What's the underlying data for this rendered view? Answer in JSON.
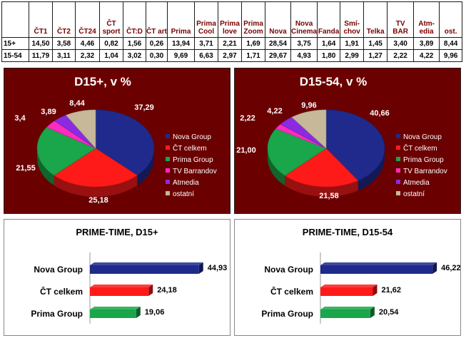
{
  "table": {
    "columns": [
      "ČT1",
      "ČT2",
      "ČT24",
      "ČT sport",
      "ČT:D",
      "ČT art",
      "Prima",
      "Prima Cool",
      "Prima love",
      "Prima Zoom",
      "Nova",
      "Nova Cinema",
      "Fanda",
      "Smí-chov",
      "Telka",
      "TV BAR",
      "Atm-edia",
      "ost."
    ],
    "rows": [
      {
        "label": "15+",
        "values": [
          "14,50",
          "3,58",
          "4,46",
          "0,82",
          "1,56",
          "0,26",
          "13,94",
          "3,71",
          "2,21",
          "1,69",
          "28,54",
          "3,75",
          "1,64",
          "1,91",
          "1,45",
          "3,40",
          "3,89",
          "8,44"
        ]
      },
      {
        "label": "15-54",
        "values": [
          "11,79",
          "3,11",
          "2,32",
          "1,04",
          "3,02",
          "0,30",
          "9,69",
          "6,63",
          "2,97",
          "1,71",
          "29,67",
          "4,93",
          "1,80",
          "2,99",
          "1,27",
          "2,22",
          "4,22",
          "9,96"
        ]
      }
    ]
  },
  "chart_data": [
    {
      "type": "pie",
      "title": "D15+, v %",
      "categories": [
        "Nova Group",
        "ČT celkem",
        "Prima Group",
        "TV Barrandov",
        "Atmedia",
        "ostatní"
      ],
      "values": [
        37.29,
        25.18,
        21.55,
        3.4,
        3.89,
        8.44
      ],
      "labels": [
        "37,29",
        "25,18",
        "21,55",
        "3,4",
        "3,89",
        "8,44"
      ],
      "colors": [
        "#1f2a8c",
        "#ff1a1a",
        "#1aa64a",
        "#ff2bbd",
        "#8a2be2",
        "#c8b89a"
      ],
      "legend": "right"
    },
    {
      "type": "pie",
      "title": "D15-54, v %",
      "categories": [
        "Nova Group",
        "ČT celkem",
        "Prima Group",
        "TV Barrandov",
        "Atmedia",
        "ostatní"
      ],
      "values": [
        40.66,
        21.58,
        21.0,
        2.22,
        4.22,
        9.96
      ],
      "labels": [
        "40,66",
        "21,58",
        "21,00",
        "2,22",
        "4,22",
        "9,96"
      ],
      "colors": [
        "#1f2a8c",
        "#ff1a1a",
        "#1aa64a",
        "#ff2bbd",
        "#8a2be2",
        "#c8b89a"
      ],
      "legend": "right"
    },
    {
      "type": "bar",
      "orientation": "horizontal",
      "title": "PRIME-TIME, D15+",
      "categories": [
        "Nova Group",
        "ČT celkem",
        "Prima Group"
      ],
      "values": [
        44.93,
        24.18,
        19.06
      ],
      "labels": [
        "44,93",
        "24,18",
        "19,06"
      ],
      "colors": [
        "#1f2a8c",
        "#ff1a1a",
        "#1aa64a"
      ],
      "xlim": [
        0,
        50
      ]
    },
    {
      "type": "bar",
      "orientation": "horizontal",
      "title": "PRIME-TIME, D15-54",
      "categories": [
        "Nova Group",
        "ČT celkem",
        "Prima Group"
      ],
      "values": [
        46.22,
        21.62,
        20.54
      ],
      "labels": [
        "46,22",
        "21,62",
        "20,54"
      ],
      "colors": [
        "#1f2a8c",
        "#ff1a1a",
        "#1aa64a"
      ],
      "xlim": [
        0,
        50
      ]
    }
  ]
}
